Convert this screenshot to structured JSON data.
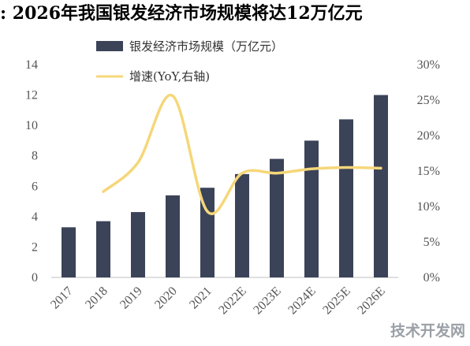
{
  "title": ": 2026年我国银发经济市场规模将达12万亿元",
  "watermark": "技术开发网",
  "colors": {
    "bar": "#3b4358",
    "line": "#f5d77a",
    "axis": "#bfbfbf"
  },
  "chart_data": {
    "type": "bar",
    "categories": [
      "2017",
      "2018",
      "2019",
      "2020",
      "2021",
      "2022E",
      "2023E",
      "2024E",
      "2025E",
      "2026E"
    ],
    "series": [
      {
        "name": "银发经济市场规模（万亿元）",
        "type": "bar",
        "axis": "left",
        "values": [
          3.3,
          3.7,
          4.3,
          5.4,
          5.9,
          6.8,
          7.8,
          9.0,
          10.4,
          12.0
        ]
      },
      {
        "name": "增速(YoY,右轴)",
        "type": "line",
        "axis": "right",
        "values": [
          12.1,
          16.2,
          25.6,
          9.3,
          14.7,
          14.7,
          15.3,
          15.5,
          15.4
        ],
        "x": [
          "2018",
          "2019",
          "2020",
          "2021",
          "2022E",
          "2023E",
          "2024E",
          "2025E",
          "2026E"
        ]
      }
    ],
    "ylim_left": [
      0,
      14
    ],
    "yticks_left": [
      "0",
      "2",
      "4",
      "6",
      "8",
      "10",
      "12",
      "14"
    ],
    "ylim_right": [
      0,
      30
    ],
    "yticks_right": [
      "0%",
      "5%",
      "10%",
      "15%",
      "20%",
      "25%",
      "30%"
    ],
    "legend_position": "top-left",
    "grid": false
  }
}
